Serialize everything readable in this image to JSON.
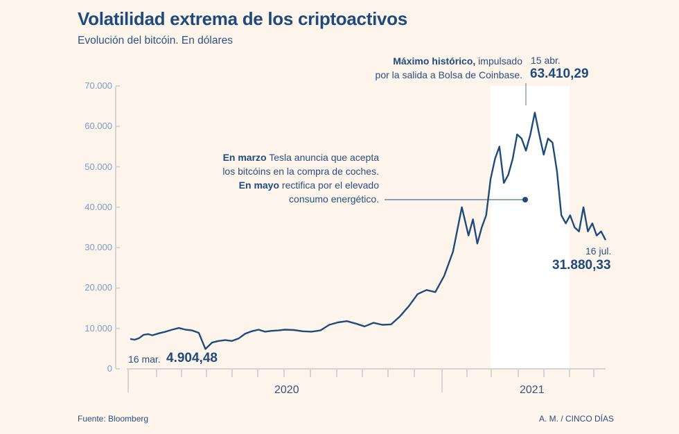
{
  "header": {
    "title": "Volatilidad extrema de los criptoactivos",
    "subtitle": "Evolución del bitcóin. En dólares"
  },
  "annotations": {
    "peak": {
      "bold": "Máximo histórico,",
      "line1_rest": " impulsado",
      "line2": "por la salida a Bolsa de Coinbase.",
      "date": "15 abr.",
      "value": "63.410,29"
    },
    "tesla": {
      "bold1": "En marzo",
      "line1_rest": " Tesla anuncia que acepta",
      "line2": "los bitcóins en la compra de coches.",
      "bold2": "En mayo",
      "line3_rest": " rectifica por el elevado",
      "line4": "consumo energético."
    },
    "low": {
      "date": "16 mar.",
      "value": "4.904,48"
    },
    "last": {
      "date": "16 jul.",
      "value": "31.880,33"
    }
  },
  "footer": {
    "source": "Fuente: Bloomberg",
    "credit": "A. M. / CINCO DÍAS"
  },
  "colors": {
    "background": "#fdf4ec",
    "line": "#1f4a7c",
    "axis": "#d6d3d3",
    "ytick_text": "#7d9dc3",
    "highlight_band": "#ffffff"
  },
  "chart_data": {
    "type": "line",
    "title": "Volatilidad extrema de los criptoactivos",
    "subtitle": "Evolución del bitcóin. En dólares",
    "xlabel": "",
    "ylabel": "",
    "ylim": [
      0,
      70000
    ],
    "yticks": [
      0,
      10000,
      20000,
      30000,
      40000,
      50000,
      60000,
      70000
    ],
    "ytick_labels": [
      "0",
      "10.000",
      "20.000",
      "30.000",
      "40.000",
      "50.000",
      "60.000",
      "70.000"
    ],
    "year_labels": [
      "2020",
      "2021"
    ],
    "grid": false,
    "legend": "none",
    "x_range_months": [
      0,
      19
    ],
    "x_start": "oct. 2019",
    "highlight_months": [
      16.9,
      19.7
    ],
    "series": [
      {
        "name": "Bitcóin (USD)",
        "x_months": [
          0,
          0.2,
          0.4,
          0.6,
          0.8,
          1.0,
          1.3,
          1.6,
          1.9,
          2.2,
          2.5,
          2.8,
          3.1,
          3.4,
          3.7,
          4.0,
          4.3,
          4.6,
          4.9,
          5.2,
          5.5,
          5.8,
          6.1,
          6.4,
          6.7,
          7.0,
          7.4,
          7.8,
          8.2,
          8.6,
          9.0,
          9.4,
          9.8,
          10.2,
          10.6,
          11.0,
          11.4,
          11.8,
          12.2,
          12.6,
          13.0,
          13.4,
          13.8,
          14.2,
          14.6,
          15.0,
          15.3,
          15.5,
          15.7,
          15.9,
          16.1,
          16.3,
          16.5,
          16.7,
          16.9,
          17.1,
          17.3,
          17.5,
          17.7,
          17.9,
          18.1,
          18.3,
          18.5,
          18.7,
          18.9,
          19.1,
          19.3,
          19.5,
          19.7,
          19.9,
          20.1,
          20.3,
          20.5,
          20.7,
          20.9,
          21.1,
          21.3,
          21.5
        ],
        "values": [
          7400,
          7200,
          7600,
          8400,
          8600,
          8300,
          8800,
          9200,
          9700,
          10100,
          9700,
          9500,
          8900,
          4904,
          6500,
          6900,
          7100,
          6900,
          7500,
          8700,
          9300,
          9700,
          9200,
          9400,
          9500,
          9700,
          9600,
          9300,
          9200,
          9500,
          10900,
          11500,
          11800,
          11200,
          10500,
          11400,
          10900,
          11000,
          13000,
          15500,
          18500,
          19500,
          19000,
          23000,
          29000,
          40000,
          33000,
          37000,
          31000,
          35000,
          38000,
          47000,
          52000,
          55000,
          46000,
          48000,
          52000,
          58000,
          57000,
          54000,
          58000,
          63410,
          58000,
          53000,
          57000,
          56000,
          49000,
          38000,
          36000,
          38000,
          35000,
          34000,
          40000,
          34000,
          36000,
          33000,
          34000,
          31880
        ]
      }
    ]
  }
}
